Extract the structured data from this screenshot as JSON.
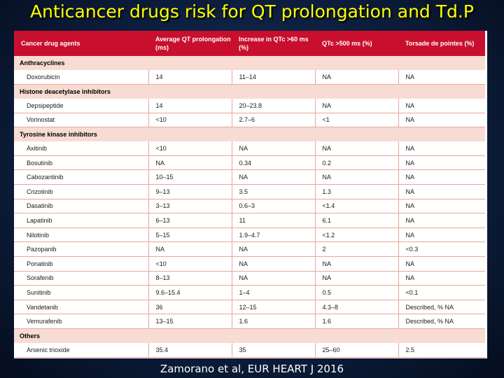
{
  "title": "Anticancer drugs risk for QT prolongation and Td.P",
  "columns": [
    "Cancer drug agents",
    "Average QT prolongation (ms)",
    "Increase in QTc >60 ms (%)",
    "QTc >500 ms (%)",
    "Torsade de pointes (%)"
  ],
  "groups": [
    {
      "name": "Anthracyclines",
      "rows": [
        [
          "Doxorubicin",
          "14",
          "11–14",
          "NA",
          "NA"
        ]
      ]
    },
    {
      "name": "Histone deacetylase inhibitors",
      "rows": [
        [
          "Depsipeptide",
          "14",
          "20–23.8",
          "NA",
          "NA"
        ],
        [
          "Vorinostat",
          "<10",
          "2.7–6",
          "<1",
          "NA"
        ]
      ]
    },
    {
      "name": "Tyrosine kinase inhibitors",
      "rows": [
        [
          "Axitinib",
          "<10",
          "NA",
          "NA",
          "NA"
        ],
        [
          "Bosutinib",
          "NA",
          "0.34",
          "0.2",
          "NA"
        ],
        [
          "Cabozantinib",
          "10–15",
          "NA",
          "NA",
          "NA"
        ],
        [
          "Crizotinib",
          "9–13",
          "3.5",
          "1.3",
          "NA"
        ],
        [
          "Dasatinib",
          "3–13",
          "0.6–3",
          "<1.4",
          "NA"
        ],
        [
          "Lapatinib",
          "6–13",
          "11",
          "6.1",
          "NA"
        ],
        [
          "Nilotinib",
          "5–15",
          "1.9–4.7",
          "<1.2",
          "NA"
        ],
        [
          "Pazopanib",
          "NA",
          "NA",
          "2",
          "<0.3"
        ],
        [
          "Ponatinib",
          "<10",
          "NA",
          "NA",
          "NA"
        ],
        [
          "Sorafenib",
          "8–13",
          "NA",
          "NA",
          "NA"
        ],
        [
          "Sunitinib",
          "9.6–15.4",
          "1–4",
          "0.5",
          "<0.1"
        ],
        [
          "Vandetanib",
          "36",
          "12–15",
          "4.3–8",
          "Described, % NA"
        ],
        [
          "Vemurafenib",
          "13–15",
          "1.6",
          "1.6",
          "Described, % NA"
        ]
      ]
    },
    {
      "name": "Others",
      "rows": [
        [
          "Arsenic trioxide",
          "35.4",
          "35",
          "25–60",
          "2.5"
        ]
      ]
    }
  ],
  "footer": "Zamorano et al, EUR HEART J 2016"
}
